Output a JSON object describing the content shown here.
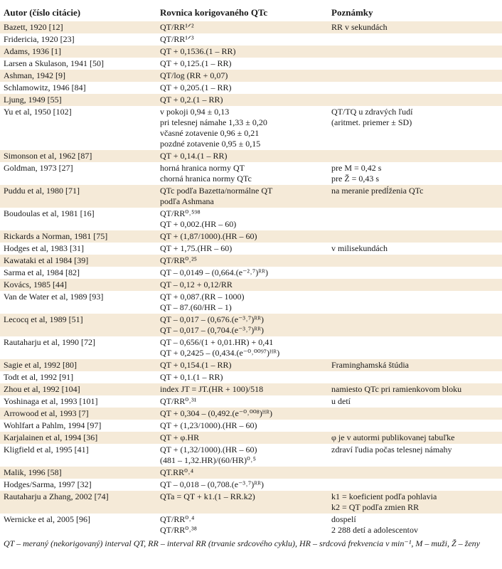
{
  "headers": [
    "Autor (číslo citácie)",
    "Rovnica korigovaného QTc",
    "Poznámky"
  ],
  "rows": [
    {
      "author": "Bazett, 1920 [12]",
      "eq": [
        "QT/RR¹ᐟ²"
      ],
      "note": [
        "RR v sekundách"
      ]
    },
    {
      "author": "Fridericia, 1920 [23]",
      "eq": [
        "QT/RR¹ᐟ³"
      ],
      "note": []
    },
    {
      "author": "Adams, 1936 [1]",
      "eq": [
        "QT + 0,1536.(1 – RR)"
      ],
      "note": []
    },
    {
      "author": "Larsen a Skulason, 1941 [50]",
      "eq": [
        "QT + 0,125.(1 – RR)"
      ],
      "note": []
    },
    {
      "author": "Ashman, 1942 [9]",
      "eq": [
        "QT/log (RR + 0,07)"
      ],
      "note": []
    },
    {
      "author": "Schlamowitz, 1946 [84]",
      "eq": [
        "QT + 0,205.(1 – RR)"
      ],
      "note": []
    },
    {
      "author": "Ljung, 1949 [55]",
      "eq": [
        "QT + 0,2.(1 – RR)"
      ],
      "note": []
    },
    {
      "author": "Yu et al, 1950 [102]",
      "eq": [
        "v pokoji 0,94 ± 0,13",
        "pri telesnej námahe 1,33 ± 0,20",
        "včasné zotavenie 0,96 ± 0,21",
        "pozdné zotavenie 0,95 ± 0,15"
      ],
      "note": [
        "QT/TQ u zdravých ľudí",
        "(aritmet. priemer ± SD)"
      ]
    },
    {
      "author": "Simonson et al, 1962 [87]",
      "eq": [
        "QT + 0,14.(1 – RR)"
      ],
      "note": []
    },
    {
      "author": "Goldman, 1973 [27]",
      "eq": [
        "horná hranica normy QT",
        "chorná hranica normy QTc"
      ],
      "note": [
        "pre M = 0,42 s",
        "pre Ž = 0,43 s"
      ]
    },
    {
      "author": "Puddu et al, 1980 [71]",
      "eq": [
        "QTc podľa Bazetta/normálne QT",
        "podľa Ashmana"
      ],
      "note": [
        "na meranie predĺženia QTc"
      ]
    },
    {
      "author": "Boudoulas et al, 1981 [16]",
      "eq": [
        "QT/RR⁰˒⁵⁹⁸",
        "QT + 0,002.(HR – 60)"
      ],
      "note": []
    },
    {
      "author": "Rickards a Norman, 1981 [75]",
      "eq": [
        "QT + (1,87/1000).(HR – 60)"
      ],
      "note": []
    },
    {
      "author": "Hodges et al, 1983 [31]",
      "eq": [
        "QT + 1,75.(HR – 60)"
      ],
      "note": [
        "v milisekundách"
      ]
    },
    {
      "author": "Kawataki et al 1984 [39]",
      "eq": [
        "QT/RR⁰˒²⁵"
      ],
      "note": []
    },
    {
      "author": "Sarma et al, 1984 [82]",
      "eq": [
        "QT – 0,0149 – (0,664.(e⁻²˒⁷)ᴿᴿ)"
      ],
      "note": []
    },
    {
      "author": "Kovács, 1985 [44]",
      "eq": [
        "QT – 0,12 + 0,12/RR"
      ],
      "note": []
    },
    {
      "author": "Van de Water et al, 1989 [93]",
      "eq": [
        "QT + 0,087.(RR – 1000)",
        "QT – 87.(60/HR – 1)"
      ],
      "note": []
    },
    {
      "author": "Lecocq et al, 1989 [51]",
      "eq": [
        "QT – 0,017 – (0,676.(e⁻³˒⁷)ᴿᴿ)",
        "QT – 0,017 – (0,704.(e⁻³˒⁷)ᴿᴿ)"
      ],
      "note": []
    },
    {
      "author": "Rautaharju et al, 1990 [72]",
      "eq": [
        "QT – 0,656/(1 + 0,01.HR) + 0,41",
        "QT + 0,2425 – (0,434.(e⁻⁰˒⁰⁰⁹⁷)ᴴᴿ)"
      ],
      "note": []
    },
    {
      "author": "Sagie et al, 1992 [80]",
      "eq": [
        "QT + 0,154.(1 – RR)"
      ],
      "note": [
        "Framinghamská štúdia"
      ]
    },
    {
      "author": "Todt et al, 1992 [91]",
      "eq": [
        "QT + 0,1.(1 – RR)"
      ],
      "note": []
    },
    {
      "author": "Zhou et al, 1992 [104]",
      "eq": [
        "index JT = JT.(HR + 100)/518"
      ],
      "note": [
        "namiesto QTc pri ramienkovom bloku"
      ]
    },
    {
      "author": "Yoshinaga et al, 1993 [101]",
      "eq": [
        "QT/RR⁰˒³¹"
      ],
      "note": [
        "u detí"
      ]
    },
    {
      "author": "Arrowood et al, 1993 [7]",
      "eq": [
        "QT + 0,304 – (0,492.(e⁻⁰˒⁰⁰⁸)ᴴᴿ)"
      ],
      "note": []
    },
    {
      "author": "Wohlfart a Pahlm, 1994 [97]",
      "eq": [
        "QT + (1,23/1000).(HR – 60)"
      ],
      "note": []
    },
    {
      "author": "Karjalainen et al, 1994 [36]",
      "eq": [
        "QT + φ.HR"
      ],
      "note": [
        "φ je v autormi publikovanej tabuľke"
      ]
    },
    {
      "author": "Kligfield et al, 1995 [41]",
      "eq": [
        "QT + (1,32/1000).(HR – 60)",
        "(481 – 1,32.HR)/(60/HR)⁰˒⁵"
      ],
      "note": [
        "zdraví ľudia počas telesnej námahy"
      ]
    },
    {
      "author": "Malik, 1996 [58]",
      "eq": [
        "QT.RR⁰˒⁴"
      ],
      "note": []
    },
    {
      "author": "Hodges/Sarma, 1997 [32]",
      "eq": [
        "QT – 0,018 – (0,708.(e⁻³˒⁷)ᴿᴿ)"
      ],
      "note": []
    },
    {
      "author": "Rautaharju a Zhang, 2002 [74]",
      "eq": [
        "QTa = QT + k1.(1 – RR.k2)"
      ],
      "note": [
        "k1 = koeficient podľa pohlavia",
        "k2 = QT podľa zmien RR"
      ]
    },
    {
      "author": "Wernicke et al, 2005 [96]",
      "eq": [
        "QT/RR⁰˒⁴",
        "QT/RR⁰˒³⁸"
      ],
      "note": [
        "dospelí",
        "2 288 detí a adolescentov"
      ]
    }
  ],
  "footnote": "QT – meraný (nekorigovaný) interval QT, RR – interval RR (trvanie srdcového cyklu), HR – srdcová frekvencia v min⁻¹, M – muži, Ž – ženy"
}
